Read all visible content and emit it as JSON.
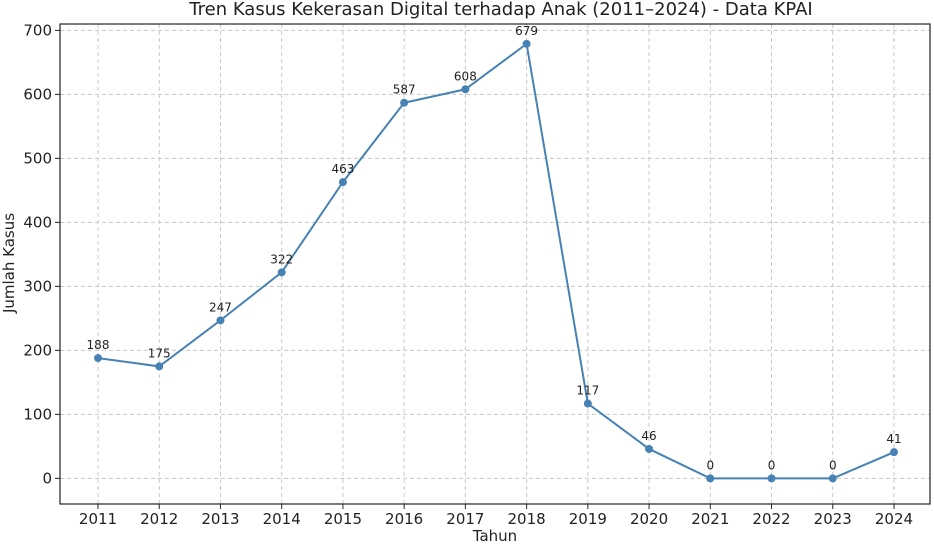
{
  "chart_data": {
    "type": "line",
    "title": "Tren Kasus Kekerasan Digital terhadap Anak (2011–2024) - Data KPAI",
    "xlabel": "Tahun",
    "ylabel": "Jumlah Kasus",
    "categories": [
      "2011",
      "2012",
      "2013",
      "2014",
      "2015",
      "2016",
      "2017",
      "2018",
      "2019",
      "2020",
      "2021",
      "2022",
      "2023",
      "2024"
    ],
    "series": [
      {
        "values": [
          188,
          175,
          247,
          322,
          463,
          587,
          608,
          679,
          117,
          46,
          0,
          0,
          0,
          41
        ]
      }
    ],
    "ylim": [
      -40,
      710
    ],
    "yticks": [
      0,
      100,
      200,
      300,
      400,
      500,
      600,
      700
    ],
    "grid": true,
    "line_color": "#4682b4",
    "data_labels": true
  }
}
